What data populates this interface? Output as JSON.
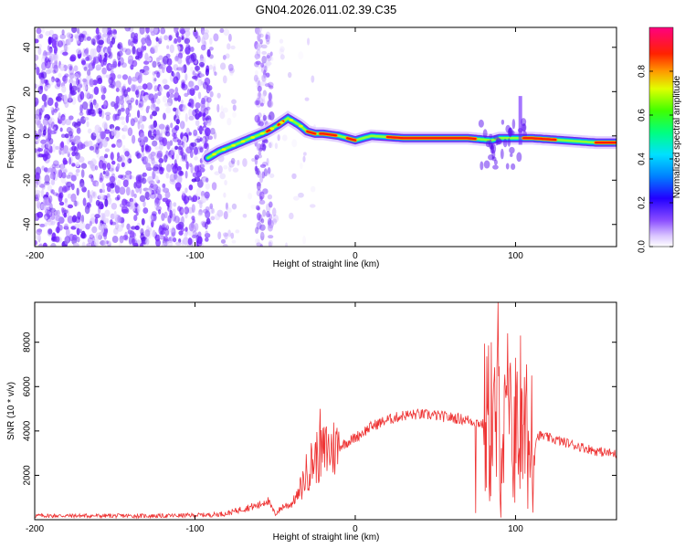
{
  "title": "GN04.2026.011.02.39.C35",
  "chart_data": [
    {
      "type": "heatmap",
      "name": "spectrogram",
      "xlabel": "Height of straight line (km)",
      "ylabel": "Frequency (Hz)",
      "xlim": [
        -200,
        163
      ],
      "ylim": [
        -50,
        49
      ],
      "xticks": [
        -200,
        -100,
        0,
        100
      ],
      "yticks": [
        -40,
        -20,
        0,
        20,
        40
      ],
      "colorbar": {
        "label": "Normalized spectral amplitude",
        "range": [
          0,
          1
        ],
        "ticks": [
          0.0,
          0.2,
          0.4,
          0.6,
          0.8
        ],
        "tick_labels": [
          "0.0",
          "0.2",
          "0.4",
          "0.6",
          "0.8"
        ]
      },
      "ridge": {
        "x": [
          -92,
          -85,
          -75,
          -65,
          -55,
          -48,
          -42,
          -35,
          -30,
          -25,
          -20,
          -10,
          0,
          10,
          30,
          50,
          70,
          85,
          90,
          100,
          110,
          130,
          150,
          163
        ],
        "y": [
          -10,
          -7,
          -4,
          -1,
          2,
          5,
          8,
          5,
          2,
          1,
          1,
          0,
          -2,
          0,
          -1,
          -1,
          -1,
          -2,
          -1,
          -1,
          -1,
          -2,
          -3,
          -3
        ]
      }
    },
    {
      "type": "line",
      "name": "snr",
      "xlabel": "Height of straight line (km)",
      "ylabel": "SNR (10 * v/v)",
      "xlim": [
        -200,
        163
      ],
      "ylim": [
        0,
        9800
      ],
      "xticks": [
        -200,
        -100,
        0,
        100
      ],
      "yticks": [
        2000,
        4000,
        6000,
        8000
      ],
      "color": "#ee3333",
      "envelope": {
        "x": [
          -200,
          -120,
          -90,
          -80,
          -70,
          -60,
          -55,
          -50,
          -45,
          -40,
          -35,
          -30,
          -25,
          -20,
          -15,
          -10,
          0,
          10,
          20,
          30,
          40,
          50,
          60,
          70,
          75,
          80,
          85,
          88,
          90,
          92,
          95,
          100,
          105,
          108,
          110,
          113,
          115,
          120,
          130,
          140,
          150,
          163
        ],
        "y": [
          180,
          170,
          220,
          280,
          500,
          650,
          900,
          250,
          600,
          700,
          1200,
          2200,
          2800,
          3000,
          3200,
          3300,
          3700,
          4200,
          4500,
          4700,
          4750,
          4700,
          4600,
          4500,
          4400,
          4300,
          4300,
          4000,
          5000,
          3500,
          4000,
          3800,
          3500,
          3300,
          2500,
          3700,
          3800,
          3700,
          3500,
          3300,
          3100,
          2950
        ]
      },
      "peaks": [
        {
          "x": -22,
          "y": 5000
        },
        {
          "x": -18,
          "y": 4200
        },
        {
          "x": 75,
          "y": 300
        },
        {
          "x": 85,
          "y": 8000
        },
        {
          "x": 89,
          "y": 9800
        },
        {
          "x": 91,
          "y": 100
        },
        {
          "x": 95,
          "y": 8400
        },
        {
          "x": 100,
          "y": 7300
        },
        {
          "x": 103,
          "y": 8300
        },
        {
          "x": 107,
          "y": 7000
        },
        {
          "x": 110,
          "y": 6500
        }
      ]
    }
  ]
}
